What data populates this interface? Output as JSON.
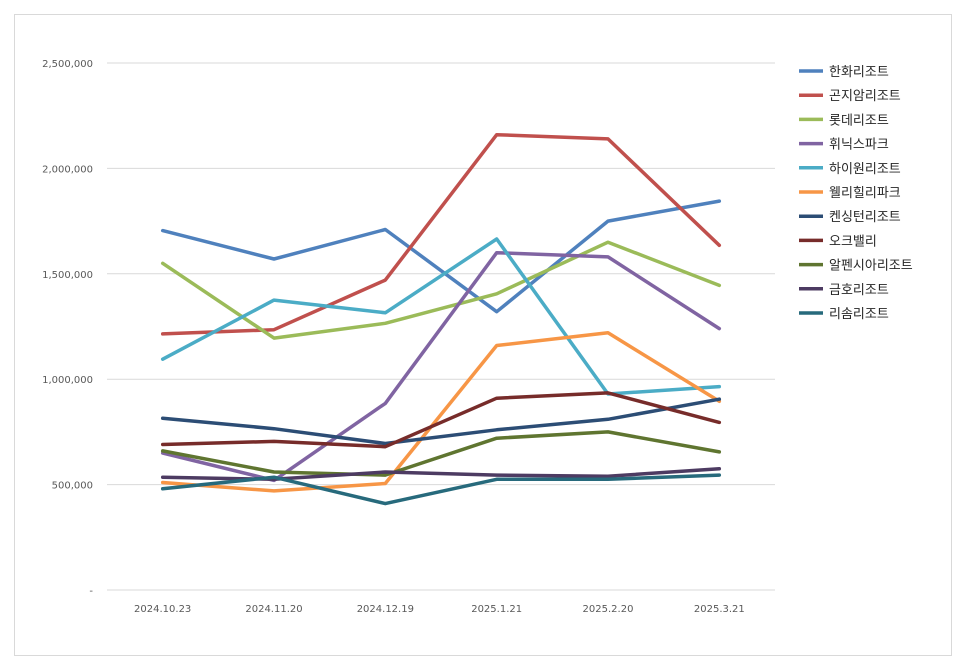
{
  "chart_data": {
    "type": "line",
    "title": "",
    "xlabel": "",
    "ylabel": "",
    "categories": [
      "2024.10.23",
      "2024.11.20",
      "2024.12.19",
      "2025.1.21",
      "2025.2.20",
      "2025.3.21"
    ],
    "ylim": [
      0,
      2500000
    ],
    "y_ticks": [
      0,
      500000,
      1000000,
      1500000,
      2000000,
      2500000
    ],
    "y_tick_labels": [
      "-",
      "500,000",
      "1,000,000",
      "1,500,000",
      "2,000,000",
      "2,500,000"
    ],
    "grid": true,
    "legend_position": "right",
    "series": [
      {
        "name": "한화리조트",
        "color": "#4F81BD",
        "values": [
          1705000,
          1570000,
          1710000,
          1320000,
          1750000,
          1845000
        ]
      },
      {
        "name": "곤지암리조트",
        "color": "#C0504D",
        "values": [
          1215000,
          1235000,
          1470000,
          2160000,
          2140000,
          1635000
        ]
      },
      {
        "name": "롯데리조트",
        "color": "#9BBB59",
        "values": [
          1550000,
          1195000,
          1265000,
          1405000,
          1650000,
          1445000
        ]
      },
      {
        "name": "휘닉스파크",
        "color": "#8064A2",
        "values": [
          650000,
          520000,
          885000,
          1600000,
          1580000,
          1240000
        ]
      },
      {
        "name": "하이원리조트",
        "color": "#4BACC6",
        "values": [
          1095000,
          1375000,
          1315000,
          1665000,
          930000,
          965000
        ]
      },
      {
        "name": "웰리힐리파크",
        "color": "#F79646",
        "values": [
          510000,
          470000,
          505000,
          1160000,
          1220000,
          895000
        ]
      },
      {
        "name": "켄싱턴리조트",
        "color": "#2C4D75",
        "values": [
          815000,
          765000,
          695000,
          760000,
          810000,
          905000
        ]
      },
      {
        "name": "오크밸리",
        "color": "#772C2A",
        "values": [
          690000,
          705000,
          680000,
          910000,
          935000,
          795000
        ]
      },
      {
        "name": "알펜시아리조트",
        "color": "#5F7530",
        "values": [
          660000,
          560000,
          545000,
          720000,
          750000,
          655000
        ]
      },
      {
        "name": "금호리조트",
        "color": "#4D3B62",
        "values": [
          535000,
          525000,
          560000,
          545000,
          540000,
          575000
        ]
      },
      {
        "name": "리솜리조트",
        "color": "#276A7C",
        "values": [
          480000,
          535000,
          410000,
          525000,
          525000,
          545000
        ]
      }
    ]
  }
}
